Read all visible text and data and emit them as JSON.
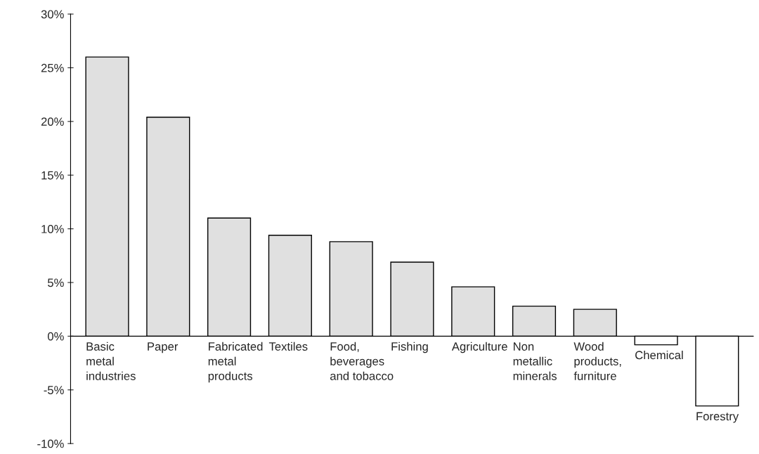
{
  "chart_data": {
    "type": "bar",
    "categories": [
      "Basic\nmetal\nindustries",
      "Paper",
      "Fabricated\nmetal\nproducts",
      "Textiles",
      "Food,\nbeverages\nand tobacco",
      "Fishing",
      "Agriculture",
      "Non\nmetallic\nminerals",
      "Wood\nproducts,\nfurniture",
      "Chemical",
      "Forestry"
    ],
    "values": [
      26.0,
      20.4,
      11.0,
      9.4,
      8.8,
      6.9,
      4.6,
      2.8,
      2.5,
      -0.8,
      -6.5
    ],
    "colors": [
      "#e0e0e0",
      "#e0e0e0",
      "#e0e0e0",
      "#e0e0e0",
      "#e0e0e0",
      "#e0e0e0",
      "#e0e0e0",
      "#e0e0e0",
      "#e0e0e0",
      "#ffffff",
      "#ffffff"
    ],
    "ylim": [
      -10,
      30
    ],
    "yticks": [
      {
        "value": -10,
        "label": "-10%"
      },
      {
        "value": -5,
        "label": "-5%"
      },
      {
        "value": 0,
        "label": "0%"
      },
      {
        "value": 5,
        "label": "5%"
      },
      {
        "value": 10,
        "label": "10%"
      },
      {
        "value": 15,
        "label": "15%"
      },
      {
        "value": 20,
        "label": "20%"
      },
      {
        "value": 25,
        "label": "25%"
      },
      {
        "value": 30,
        "label": "30%"
      }
    ],
    "grid": false,
    "legend": false
  }
}
